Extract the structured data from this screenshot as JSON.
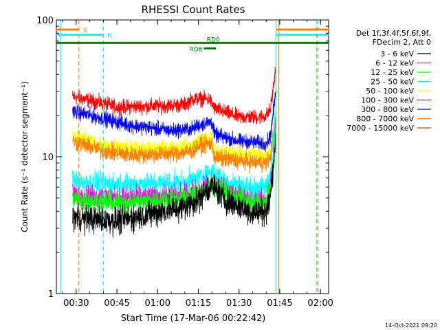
{
  "chart_data": {
    "type": "line",
    "title": "RHESSI Count Rates",
    "xlabel": "Start Time (17-Mar-06 00:22:42)",
    "ylabel": "Count Rate (s⁻¹ detector segment⁻¹)",
    "y_scale": "log",
    "ylim": [
      1,
      100
    ],
    "xlim": [
      "00:22:42",
      "02:03:00"
    ],
    "x_ticks": [
      "00:30",
      "00:45",
      "01:00",
      "01:15",
      "01:30",
      "01:45",
      "02:00"
    ],
    "y_ticks": [
      "1",
      "10",
      "100"
    ],
    "grid": false,
    "data_start": "00:28:40",
    "data_end": "01:43:30",
    "legend": {
      "placement": "right",
      "header": [
        "Det 1f,3f,4f,5f,6f,9f,",
        "FDecim 2, Att 0"
      ],
      "entries": [
        {
          "name": "3 - 6 keV",
          "color": "#000000"
        },
        {
          "name": "6 - 12 keV",
          "color": "#ff00ff"
        },
        {
          "name": "12 - 25 keV",
          "color": "#00ff00"
        },
        {
          "name": "25 - 50 keV",
          "color": "#00ffff"
        },
        {
          "name": "50 - 100 keV",
          "color": "#ffff00"
        },
        {
          "name": "100 - 300 keV",
          "color": "#ff0000"
        },
        {
          "name": "300 - 800 keV",
          "color": "#0000ff"
        },
        {
          "name": "800 - 7000 keV",
          "color": "#ff8000"
        },
        {
          "name": "7000 - 15000 keV",
          "color": "#a05000"
        }
      ]
    },
    "series": [
      {
        "name": "100 - 300 keV",
        "color": "#ff0000",
        "noise": 0.06,
        "points": [
          [
            "00:28:40",
            27.5
          ],
          [
            "00:40:00",
            24.5
          ],
          [
            "00:45:00",
            23.0
          ],
          [
            "01:00:00",
            23.5
          ],
          [
            "01:10:00",
            24.0
          ],
          [
            "01:13:00",
            26.5
          ],
          [
            "01:19:00",
            26.5
          ],
          [
            "01:21:00",
            22.5
          ],
          [
            "01:30:00",
            19.5
          ],
          [
            "01:38:00",
            19.5
          ],
          [
            "01:40:00",
            20.0
          ],
          [
            "01:41:30",
            22.0
          ],
          [
            "01:42:30",
            30.0
          ],
          [
            "01:43:30",
            45.0
          ]
        ]
      },
      {
        "name": "300 - 800 keV",
        "color": "#0000ff",
        "noise": 0.06,
        "points": [
          [
            "00:28:40",
            21.5
          ],
          [
            "00:40:00",
            19.0
          ],
          [
            "00:50:00",
            17.0
          ],
          [
            "01:05:00",
            15.5
          ],
          [
            "01:13:00",
            16.0
          ],
          [
            "01:15:00",
            17.0
          ],
          [
            "01:20:00",
            18.0
          ],
          [
            "01:21:00",
            14.5
          ],
          [
            "01:30:00",
            13.0
          ],
          [
            "01:40:00",
            12.5
          ],
          [
            "01:41:30",
            14.0
          ],
          [
            "01:42:30",
            20.0
          ],
          [
            "01:43:30",
            30.0
          ]
        ]
      },
      {
        "name": "50 - 100 keV",
        "color": "#ffff00",
        "noise": 0.07,
        "points": [
          [
            "00:28:40",
            14.5
          ],
          [
            "00:40:00",
            12.0
          ],
          [
            "00:50:00",
            11.3
          ],
          [
            "01:05:00",
            11.5
          ],
          [
            "01:13:00",
            12.0
          ],
          [
            "01:15:00",
            13.0
          ],
          [
            "01:20:00",
            13.5
          ],
          [
            "01:21:00",
            10.8
          ],
          [
            "01:30:00",
            10.5
          ],
          [
            "01:40:00",
            10.2
          ],
          [
            "01:41:30",
            11.0
          ],
          [
            "01:42:30",
            15.0
          ],
          [
            "01:43:30",
            20.0
          ]
        ]
      },
      {
        "name": "800 - 7000 keV",
        "color": "#ff8000",
        "noise": 0.07,
        "points": [
          [
            "00:28:40",
            13.0
          ],
          [
            "00:40:00",
            11.0
          ],
          [
            "00:50:00",
            10.3
          ],
          [
            "01:05:00",
            10.5
          ],
          [
            "01:13:00",
            11.0
          ],
          [
            "01:15:00",
            12.0
          ],
          [
            "01:20:00",
            12.5
          ],
          [
            "01:21:00",
            9.8
          ],
          [
            "01:30:00",
            9.3
          ],
          [
            "01:40:00",
            9.0
          ],
          [
            "01:41:30",
            10.0
          ],
          [
            "01:42:30",
            14.0
          ],
          [
            "01:43:30",
            19.0
          ]
        ]
      },
      {
        "name": "25 - 50 keV",
        "color": "#00ffff",
        "noise": 0.09,
        "points": [
          [
            "00:28:40",
            6.6
          ],
          [
            "00:45:00",
            6.3
          ],
          [
            "01:00:00",
            6.4
          ],
          [
            "01:10:00",
            6.5
          ],
          [
            "01:15:00",
            7.0
          ],
          [
            "01:20:00",
            7.8
          ],
          [
            "01:25:00",
            6.6
          ],
          [
            "01:35:00",
            5.8
          ],
          [
            "01:40:00",
            6.0
          ],
          [
            "01:41:30",
            7.5
          ],
          [
            "01:42:30",
            12.0
          ],
          [
            "01:43:30",
            22.0
          ]
        ]
      },
      {
        "name": "6 - 12 keV",
        "color": "#ff00ff",
        "noise": 0.09,
        "points": [
          [
            "00:28:40",
            5.3
          ],
          [
            "00:45:00",
            5.0
          ],
          [
            "01:00:00",
            5.1
          ],
          [
            "01:10:00",
            5.3
          ],
          [
            "01:15:00",
            5.6
          ],
          [
            "01:20:00",
            6.4
          ],
          [
            "01:25:00",
            5.6
          ],
          [
            "01:35:00",
            4.7
          ],
          [
            "01:40:00",
            4.9
          ],
          [
            "01:41:30",
            6.0
          ],
          [
            "01:42:30",
            9.0
          ],
          [
            "01:43:30",
            18.0
          ]
        ]
      },
      {
        "name": "12 - 25 keV",
        "color": "#00ff00",
        "noise": 0.09,
        "points": [
          [
            "00:28:40",
            4.9
          ],
          [
            "00:45:00",
            4.6
          ],
          [
            "01:00:00",
            4.8
          ],
          [
            "01:10:00",
            5.0
          ],
          [
            "01:15:00",
            5.4
          ],
          [
            "01:20:00",
            6.2
          ],
          [
            "01:25:00",
            5.5
          ],
          [
            "01:35:00",
            4.5
          ],
          [
            "01:40:00",
            4.6
          ],
          [
            "01:41:30",
            5.8
          ],
          [
            "01:42:30",
            8.5
          ],
          [
            "01:43:30",
            15.0
          ]
        ]
      },
      {
        "name": "3 - 6 keV",
        "color": "#000000",
        "noise": 0.11,
        "points": [
          [
            "00:28:40",
            3.6
          ],
          [
            "00:45:00",
            3.4
          ],
          [
            "01:00:00",
            3.9
          ],
          [
            "01:10:00",
            4.3
          ],
          [
            "01:15:00",
            4.9
          ],
          [
            "01:20:00",
            6.2
          ],
          [
            "01:25:00",
            4.8
          ],
          [
            "01:35:00",
            3.9
          ],
          [
            "01:40:00",
            4.0
          ],
          [
            "01:41:30",
            5.0
          ],
          [
            "01:42:30",
            8.0
          ],
          [
            "01:43:30",
            14.0
          ]
        ]
      }
    ],
    "vertical_lines": [
      {
        "time": "00:24:20",
        "color": "#00ffff",
        "style": "solid"
      },
      {
        "time": "00:31:00",
        "color": "#ff8000",
        "style": "dashed"
      },
      {
        "time": "00:40:00",
        "color": "#00ffff",
        "style": "dashed"
      },
      {
        "time": "01:43:40",
        "color": "#00ffff",
        "style": "solid"
      },
      {
        "time": "01:44:40",
        "color": "#ff8000",
        "style": "solid"
      },
      {
        "time": "01:58:40",
        "color": "#ff8000",
        "style": "dashed"
      },
      {
        "time": "01:59:10",
        "color": "#00ffff",
        "style": "dashed"
      }
    ],
    "flag_bars": [
      {
        "label": "S",
        "start": "00:22:42",
        "end": "00:31:00",
        "value": 85,
        "color": "#ff8000",
        "label_side": "end"
      },
      {
        "label": "N",
        "start": "00:22:42",
        "end": "00:40:00",
        "value": 78,
        "color": "#00ffff",
        "label_side": "end"
      },
      {
        "label": "",
        "start": "01:43:40",
        "end": "02:03:00",
        "value": 85,
        "color": "#ff8000",
        "label_side": ""
      },
      {
        "label": "",
        "start": "01:43:40",
        "end": "02:03:00",
        "value": 78,
        "color": "#00ffff",
        "label_side": ""
      },
      {
        "label": "RD0",
        "start": "00:22:42",
        "end": "02:03:00",
        "value": 68,
        "color": "#008000",
        "label_side": "above-mid"
      },
      {
        "label": "RD6",
        "start": "01:17:00",
        "end": "01:21:30",
        "value": 62,
        "color": "#008000",
        "label_side": "left"
      }
    ]
  },
  "footer": {
    "timestamp": "14-Oct-2021 09:20"
  }
}
